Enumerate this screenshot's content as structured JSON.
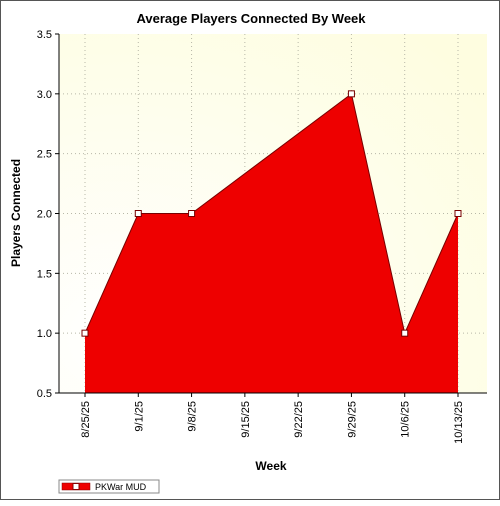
{
  "chart_data": {
    "type": "area",
    "title": "Average Players Connected By Week",
    "xlabel": "Week",
    "ylabel": "Players Connected",
    "ylim": [
      0.5,
      3.5
    ],
    "yticks": [
      "0.5",
      "1.0",
      "1.5",
      "2.0",
      "2.5",
      "3.0",
      "3.5"
    ],
    "categories": [
      "8/25/25",
      "9/1/25",
      "9/8/25",
      "9/15/25",
      "9/22/25",
      "9/29/25",
      "10/6/25",
      "10/13/25"
    ],
    "series": [
      {
        "name": "PKWar MUD",
        "color": "#ee0000",
        "points": [
          {
            "x": "8/25/25",
            "y": 1.0
          },
          {
            "x": "9/1/25",
            "y": 2.0
          },
          {
            "x": "9/8/25",
            "y": 2.0
          },
          {
            "x": "9/29/25",
            "y": 3.0
          },
          {
            "x": "10/6/25",
            "y": 1.0
          },
          {
            "x": "10/13/25",
            "y": 2.0
          }
        ]
      }
    ],
    "grid": true,
    "legend_position": "bottom-left",
    "background_gradient": [
      "#ffffff",
      "#fefde0"
    ]
  }
}
